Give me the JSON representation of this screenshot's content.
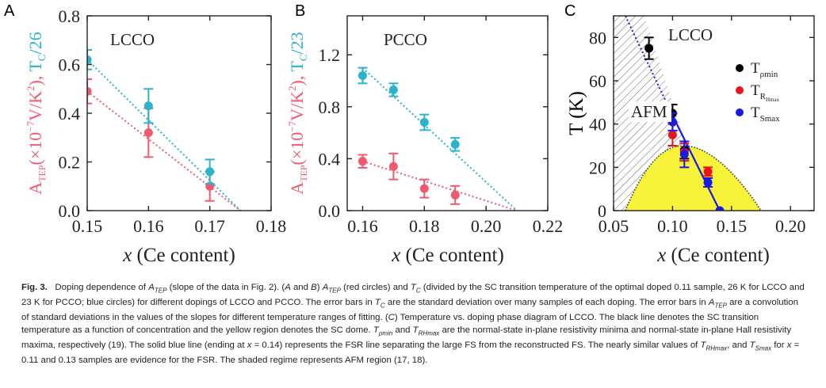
{
  "chart_data": [
    {
      "panel": "A",
      "type": "scatter",
      "tag": "LCCO",
      "xlabel": "x (Ce content)",
      "ylabel": "A_TEP(×10^-7 V/K^2), T_C/26",
      "ylabel_parts": {
        "a": "A",
        "a_sub": "TEP",
        "mid": "(×10",
        "exp": "−7",
        "units": "V/K",
        "sq": "2",
        "close": "),",
        "t": " T",
        "t_sub": "C",
        "t_tail": "/26"
      },
      "xlim": [
        0.15,
        0.18
      ],
      "ylim": [
        0.0,
        0.8
      ],
      "xticks": [
        "0.15",
        "0.16",
        "0.17",
        "0.18"
      ],
      "yticks": [
        "0.0",
        "0.2",
        "0.4",
        "0.6",
        "0.8"
      ],
      "series": [
        {
          "name": "A_TEP",
          "color": "#f05a6e",
          "points": [
            {
              "x": 0.15,
              "y": 0.49,
              "err": 0.05
            },
            {
              "x": 0.16,
              "y": 0.32,
              "err": 0.1
            },
            {
              "x": 0.17,
              "y": 0.1,
              "err": 0.06
            }
          ],
          "fit": [
            [
              0.15,
              0.49
            ],
            [
              0.175,
              0.0
            ]
          ]
        },
        {
          "name": "T_C/26",
          "color": "#2bb2cc",
          "points": [
            {
              "x": 0.15,
              "y": 0.62,
              "err": 0.04
            },
            {
              "x": 0.16,
              "y": 0.43,
              "err": 0.07
            },
            {
              "x": 0.17,
              "y": 0.16,
              "err": 0.05
            }
          ],
          "fit": [
            [
              0.15,
              0.62
            ],
            [
              0.175,
              0.0
            ]
          ]
        }
      ]
    },
    {
      "panel": "B",
      "type": "scatter",
      "tag": "PCCO",
      "xlabel": "x (Ce content)",
      "ylabel": "A_TEP(×10^-7 V/K^2), T_C/23",
      "ylabel_parts": {
        "a": "A",
        "a_sub": "TEP",
        "mid": "(×10",
        "exp": "−7",
        "units": "V/K",
        "sq": "2",
        "close": "),",
        "t": " T",
        "t_sub": "C",
        "t_tail": "/23"
      },
      "xlim": [
        0.155,
        0.22
      ],
      "ylim": [
        0.0,
        1.5
      ],
      "xticks": [
        "0.16",
        "0.18",
        "0.20",
        "0.22"
      ],
      "yticks": [
        "0.0",
        "0.4",
        "0.8",
        "1.2"
      ],
      "series": [
        {
          "name": "A_TEP",
          "color": "#f05a6e",
          "points": [
            {
              "x": 0.16,
              "y": 0.38,
              "err": 0.05
            },
            {
              "x": 0.17,
              "y": 0.34,
              "err": 0.1
            },
            {
              "x": 0.18,
              "y": 0.17,
              "err": 0.07
            },
            {
              "x": 0.19,
              "y": 0.12,
              "err": 0.07
            }
          ],
          "fit": [
            [
              0.16,
              0.38
            ],
            [
              0.21,
              0.0
            ]
          ]
        },
        {
          "name": "T_C/23",
          "color": "#2bb2cc",
          "points": [
            {
              "x": 0.16,
              "y": 1.04,
              "err": 0.06
            },
            {
              "x": 0.17,
              "y": 0.93,
              "err": 0.05
            },
            {
              "x": 0.18,
              "y": 0.68,
              "err": 0.06
            },
            {
              "x": 0.19,
              "y": 0.51,
              "err": 0.05
            }
          ],
          "fit": [
            [
              0.16,
              1.1
            ],
            [
              0.21,
              0.0
            ]
          ]
        }
      ]
    },
    {
      "panel": "C",
      "type": "scatter",
      "tag": "LCCO",
      "region_label": "AFM",
      "xlabel": "x (Ce content)",
      "ylabel": "T (K)",
      "xlim": [
        0.05,
        0.22
      ],
      "ylim": [
        0,
        90
      ],
      "xticks": [
        "0.05",
        "0.10",
        "0.15",
        "0.20"
      ],
      "yticks": [
        "0",
        "20",
        "40",
        "60",
        "80"
      ],
      "legend": [
        {
          "symbol": "T",
          "sub": "ρmin",
          "color": "#000000"
        },
        {
          "symbol": "T",
          "sub": "R",
          "subsub": "Hmax",
          "color": "#e8141e"
        },
        {
          "symbol": "T",
          "sub": "Smax",
          "color": "#1a1ae6"
        }
      ],
      "series": [
        {
          "name": "T_ρmin",
          "color": "#000000",
          "points": [
            {
              "x": 0.08,
              "y": 75,
              "err": 5
            },
            {
              "x": 0.1,
              "y": 45,
              "err": 4
            },
            {
              "x": 0.11,
              "y": 28,
              "err": 4
            }
          ]
        },
        {
          "name": "T_RHmax",
          "color": "#e8141e",
          "points": [
            {
              "x": 0.1,
              "y": 35,
              "err": 5
            },
            {
              "x": 0.11,
              "y": 27,
              "err": 4
            },
            {
              "x": 0.13,
              "y": 18,
              "err": 2
            }
          ]
        },
        {
          "name": "T_Smax",
          "color": "#1a1ae6",
          "points": [
            {
              "x": 0.1,
              "y": 41,
              "err": 4
            },
            {
              "x": 0.11,
              "y": 26,
              "err": 6
            },
            {
              "x": 0.13,
              "y": 13,
              "err": 2
            },
            {
              "x": 0.14,
              "y": 0,
              "err": 0
            }
          ]
        }
      ],
      "fsr_line": [
        [
          0.1,
          44
        ],
        [
          0.14,
          0
        ]
      ],
      "fsr_extension": [
        [
          0.06,
          90
        ],
        [
          0.1,
          44
        ]
      ],
      "sc_dome": {
        "x_start": 0.06,
        "x_end": 0.175,
        "peak_x": 0.11,
        "peak_y": 30,
        "color": "#f7f23a"
      },
      "afm_region": {
        "x_start": 0.05,
        "x_end": 0.1,
        "boundary_top_x": 0.076
      }
    }
  ],
  "caption": {
    "fig_label": "Fig. 3.",
    "text": "Doping dependence of A_TEP (slope of the data in Fig. 2). (A and B) A_TEP (red circles) and T_C (divided by the SC transition temperature of the optimal doped 0.11 sample, 26 K for LCCO and 23 K for PCCO; blue circles) for different dopings of LCCO and PCCO. The error bars in T_C are the standard deviation over many samples of each doping. The error bars in A_TEP are a convolution of standard deviations in the values of the slopes for different temperature ranges of fitting. (C) Temperature vs. doping phase diagram of LCCO. The black line denotes the SC transition temperature as a function of concentration and the yellow region denotes the SC dome. T_ρmin and T_RHmax are the normal-state in-plane resistivity minima and normal-state in-plane Hall resistivity maxima, respectively (19). The solid blue line (ending at x = 0.14) represents the FSR line separating the large FS from the reconstructed FS. The nearly similar values of T_RHmax, and T_Smax for x = 0.11 and 0.13 samples are evidence for the FSR. The shaded regime represents AFM region (17, 18).",
    "segments": [
      {
        "t": "Doping dependence of "
      },
      {
        "t": "A",
        "i": true
      },
      {
        "t": "TEP",
        "sub": true,
        "i": true
      },
      {
        "t": " (slope of the data in Fig. 2). ("
      },
      {
        "t": "A",
        "i": true
      },
      {
        "t": " and "
      },
      {
        "t": "B",
        "i": true
      },
      {
        "t": ") "
      },
      {
        "t": "A",
        "i": true
      },
      {
        "t": "TEP",
        "sub": true,
        "i": true
      },
      {
        "t": " (red circles) and "
      },
      {
        "t": "T",
        "i": true
      },
      {
        "t": "C",
        "sub": true,
        "i": true
      },
      {
        "t": " (divided by the SC transition temperature of the optimal doped 0.11 sample, 26 K for LCCO and 23 K for PCCO; blue circles) for different dopings of LCCO and PCCO. The error bars in "
      },
      {
        "t": "T",
        "i": true
      },
      {
        "t": "C",
        "sub": true,
        "i": true
      },
      {
        "t": " are the standard deviation over many samples of each doping. The error bars in "
      },
      {
        "t": "A",
        "i": true
      },
      {
        "t": "TEP",
        "sub": true,
        "i": true
      },
      {
        "t": " are a convolution of standard deviations in the values of the slopes for different temperature ranges of fitting. ("
      },
      {
        "t": "C",
        "i": true
      },
      {
        "t": ") Temperature vs. doping phase diagram of LCCO. The black line denotes the SC transition temperature as a function of concentration and the yellow region denotes the SC dome. "
      },
      {
        "t": "T",
        "i": true
      },
      {
        "t": "ρmin",
        "sub": true,
        "i": true
      },
      {
        "t": " and "
      },
      {
        "t": "T",
        "i": true
      },
      {
        "t": "RHmax",
        "sub": true,
        "i": true
      },
      {
        "t": " are the normal-state in-plane resistivity minima and normal-state in-plane Hall resistivity maxima, respectively (19). The solid blue line (ending at "
      },
      {
        "t": "x",
        "i": true
      },
      {
        "t": " = 0.14) represents the FSR line separating the large FS from the reconstructed FS. The nearly similar values of "
      },
      {
        "t": "T",
        "i": true
      },
      {
        "t": "RHmax",
        "sub": true,
        "i": true
      },
      {
        "t": ", and "
      },
      {
        "t": "T",
        "i": true
      },
      {
        "t": "Smax",
        "sub": true,
        "i": true
      },
      {
        "t": " for "
      },
      {
        "t": "x",
        "i": true
      },
      {
        "t": " = 0.11 and 0.13 samples are evidence for the FSR. The shaded regime represents AFM region (17, 18)."
      }
    ]
  }
}
